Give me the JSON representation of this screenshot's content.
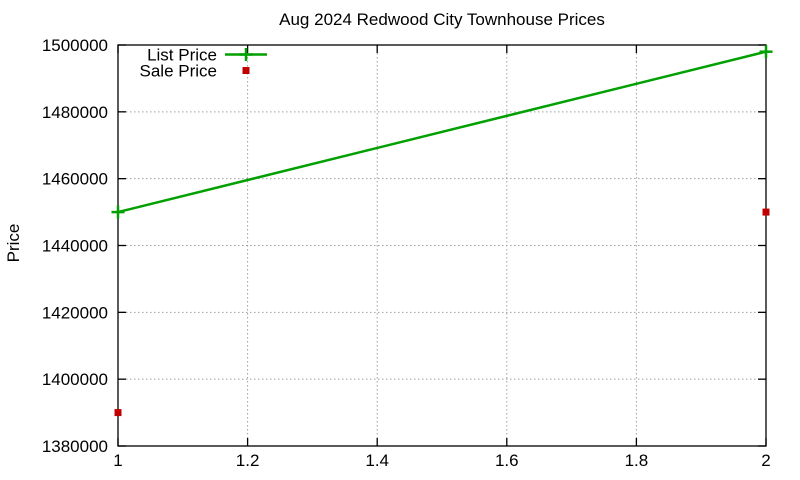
{
  "chart_data": {
    "type": "line",
    "title": "Aug 2024 Redwood City Townhouse Prices",
    "xlabel": "",
    "ylabel": "Price",
    "x": [
      1,
      2
    ],
    "series": [
      {
        "name": "List Price",
        "style": "line-with-plus-markers",
        "color": "#00a000",
        "values": [
          1450000,
          1498000
        ]
      },
      {
        "name": "Sale Price",
        "style": "square-points",
        "color": "#c00000",
        "values": [
          1390000,
          1450000
        ]
      }
    ],
    "xlim": [
      1,
      2
    ],
    "ylim": [
      1380000,
      1500000
    ],
    "xticks": [
      1,
      1.2,
      1.4,
      1.6,
      1.8,
      2
    ],
    "yticks": [
      1380000,
      1400000,
      1420000,
      1440000,
      1460000,
      1480000,
      1500000
    ],
    "grid": "dotted",
    "legend_position": "top-left-inside",
    "colors": {
      "grid": "#a0a0a0",
      "axis": "#000000",
      "background": "#ffffff"
    }
  }
}
